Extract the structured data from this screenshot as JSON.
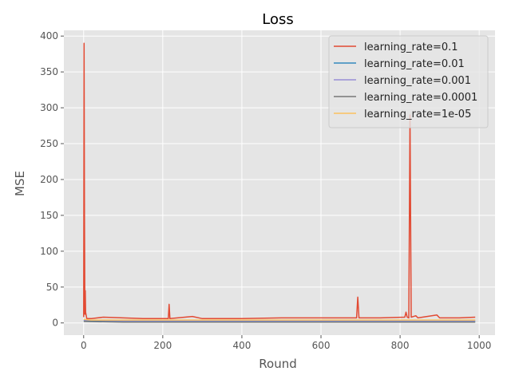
{
  "chart_data": {
    "type": "line",
    "title": "Loss",
    "xlabel": "Round",
    "ylabel": "MSE",
    "xlim": [
      -50,
      1040
    ],
    "ylim": [
      -17,
      408
    ],
    "xticks": [
      0,
      200,
      400,
      600,
      800,
      1000
    ],
    "yticks": [
      0,
      50,
      100,
      150,
      200,
      250,
      300,
      350,
      400
    ],
    "grid": true,
    "legend_position": "top-right",
    "series": [
      {
        "name": "learning_rate=0.1",
        "color": "#E24A33",
        "points": [
          [
            0,
            8
          ],
          [
            1,
            390
          ],
          [
            2,
            150
          ],
          [
            3,
            12
          ],
          [
            4,
            45
          ],
          [
            5,
            15
          ],
          [
            8,
            6
          ],
          [
            20,
            6
          ],
          [
            50,
            8
          ],
          [
            100,
            7
          ],
          [
            150,
            6
          ],
          [
            200,
            6
          ],
          [
            214,
            6
          ],
          [
            216,
            26
          ],
          [
            218,
            6
          ],
          [
            275,
            9
          ],
          [
            300,
            6
          ],
          [
            400,
            6
          ],
          [
            500,
            7
          ],
          [
            600,
            7
          ],
          [
            690,
            7
          ],
          [
            693,
            36
          ],
          [
            696,
            7
          ],
          [
            750,
            7
          ],
          [
            812,
            8
          ],
          [
            815,
            15
          ],
          [
            818,
            8
          ],
          [
            822,
            7
          ],
          [
            825,
            290
          ],
          [
            828,
            8
          ],
          [
            840,
            10
          ],
          [
            845,
            7
          ],
          [
            893,
            11
          ],
          [
            900,
            7
          ],
          [
            950,
            7
          ],
          [
            990,
            8
          ]
        ]
      },
      {
        "name": "learning_rate=0.01",
        "color": "#348ABD",
        "points": [
          [
            0,
            3
          ],
          [
            100,
            2
          ],
          [
            200,
            2
          ],
          [
            300,
            2
          ],
          [
            400,
            2
          ],
          [
            500,
            2
          ],
          [
            600,
            2
          ],
          [
            700,
            2
          ],
          [
            800,
            2
          ],
          [
            900,
            2
          ],
          [
            990,
            2
          ]
        ]
      },
      {
        "name": "learning_rate=0.001",
        "color": "#988ED5",
        "points": [
          [
            0,
            4
          ],
          [
            100,
            3
          ],
          [
            200,
            3
          ],
          [
            300,
            3
          ],
          [
            400,
            3
          ],
          [
            500,
            3
          ],
          [
            600,
            3
          ],
          [
            700,
            3
          ],
          [
            800,
            3
          ],
          [
            900,
            3
          ],
          [
            990,
            3
          ]
        ]
      },
      {
        "name": "learning_rate=0.0001",
        "color": "#777777",
        "points": [
          [
            0,
            2
          ],
          [
            100,
            1
          ],
          [
            200,
            1
          ],
          [
            300,
            1
          ],
          [
            400,
            1
          ],
          [
            500,
            1
          ],
          [
            600,
            1
          ],
          [
            700,
            1
          ],
          [
            800,
            1
          ],
          [
            900,
            1
          ],
          [
            990,
            1
          ]
        ]
      },
      {
        "name": "learning_rate=1e-05",
        "color": "#FBC15E",
        "points": [
          [
            0,
            5
          ],
          [
            20,
            4
          ],
          [
            100,
            4
          ],
          [
            200,
            4
          ],
          [
            300,
            4
          ],
          [
            400,
            4
          ],
          [
            500,
            4
          ],
          [
            600,
            4
          ],
          [
            700,
            4
          ],
          [
            800,
            4
          ],
          [
            900,
            4
          ],
          [
            990,
            4
          ]
        ]
      }
    ]
  }
}
